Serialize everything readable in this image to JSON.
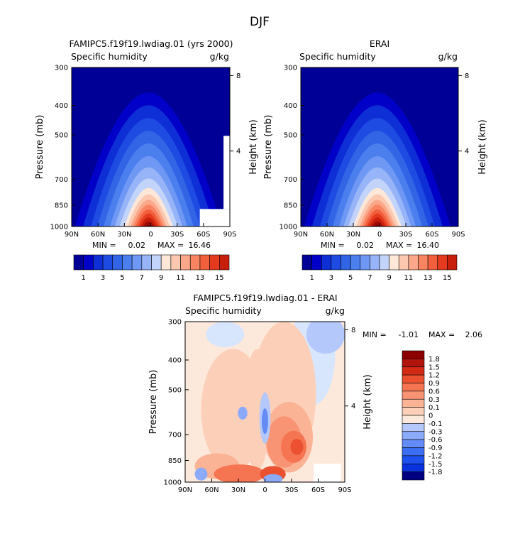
{
  "page_title": "DJF",
  "colors": {
    "abs_levels": [
      "#000096",
      "#0000c8",
      "#0f2fd6",
      "#1e4be1",
      "#3264e6",
      "#4b7fee",
      "#6e98f3",
      "#96b4f7",
      "#c3d4fb",
      "#fde7d9",
      "#fcc8b0",
      "#fba88a",
      "#f88462",
      "#f25f3c",
      "#e43a1e",
      "#c81e0c",
      "#a00a05",
      "#780000"
    ],
    "diff_levels": [
      "#000080",
      "#0014c8",
      "#0a32dc",
      "#1e50ee",
      "#3c6ef4",
      "#648cf8",
      "#8caafa",
      "#b4c8fc",
      "#d8e6fd",
      "#fde9dc",
      "#fcd0b8",
      "#fbb396",
      "#f89474",
      "#f57452",
      "#eb5030",
      "#d22a14",
      "#b0140a",
      "#8c0000"
    ]
  },
  "chart_data": [
    {
      "type": "heatmap",
      "title": "FAMIPC5.f19f19.lwdiag.01 (yrs 2000)",
      "subtitle_left": "Specific humidity",
      "subtitle_right": "g/kg",
      "ylabel": "Pressure (mb)",
      "ylabel_right": "Height (km)",
      "x_ticks": [
        "90N",
        "60N",
        "30N",
        "0",
        "30S",
        "60S",
        "90S"
      ],
      "y_ticks": [
        "300",
        "400",
        "500",
        "700",
        "850",
        "1000"
      ],
      "right_ticks": [
        "8",
        "4"
      ],
      "stats": {
        "min_label": "MIN =",
        "min": "0.02",
        "max_label": "MAX =",
        "max": "16.46"
      },
      "colorbar_labels": [
        "1",
        "3",
        "5",
        "7",
        "9",
        "11",
        "13",
        "15"
      ],
      "peak_value": 16.46,
      "masked_surface": true
    },
    {
      "type": "heatmap",
      "title": "ERAI",
      "subtitle_left": "Specific humidity",
      "subtitle_right": "g/kg",
      "ylabel": "Pressure (mb)",
      "ylabel_right": "Height (km)",
      "x_ticks": [
        "90N",
        "60N",
        "30N",
        "0",
        "30S",
        "60S",
        "90S"
      ],
      "y_ticks": [
        "300",
        "400",
        "500",
        "700",
        "850",
        "1000"
      ],
      "right_ticks": [
        "8",
        "4"
      ],
      "stats": {
        "min_label": "MIN =",
        "min": "0.02",
        "max_label": "MAX =",
        "max": "16.40"
      },
      "colorbar_labels": [
        "1",
        "3",
        "5",
        "7",
        "9",
        "11",
        "13",
        "15"
      ],
      "peak_value": 16.4,
      "masked_surface": false
    },
    {
      "type": "heatmap",
      "title": "FAMIPC5.f19f19.lwdiag.01 - ERAI",
      "subtitle_left": "Specific humidity",
      "subtitle_right": "g/kg",
      "ylabel": "Pressure (mb)",
      "ylabel_right": "Height (km)",
      "x_ticks": [
        "90N",
        "60N",
        "30N",
        "0",
        "30S",
        "60S",
        "90S"
      ],
      "y_ticks": [
        "300",
        "400",
        "500",
        "700",
        "850",
        "1000"
      ],
      "right_ticks": [
        "8",
        "4"
      ],
      "stats": {
        "min_label": "MIN =",
        "min": "-1.01",
        "max_label": "MAX =",
        "max": "2.06"
      },
      "colorbar_labels": [
        "1.8",
        "1.5",
        "1.2",
        "0.9",
        "0.6",
        "0.3",
        "0.1",
        "0",
        "-0.1",
        "-0.3",
        "-0.6",
        "-0.9",
        "-1.2",
        "-1.5",
        "-1.8"
      ]
    }
  ]
}
